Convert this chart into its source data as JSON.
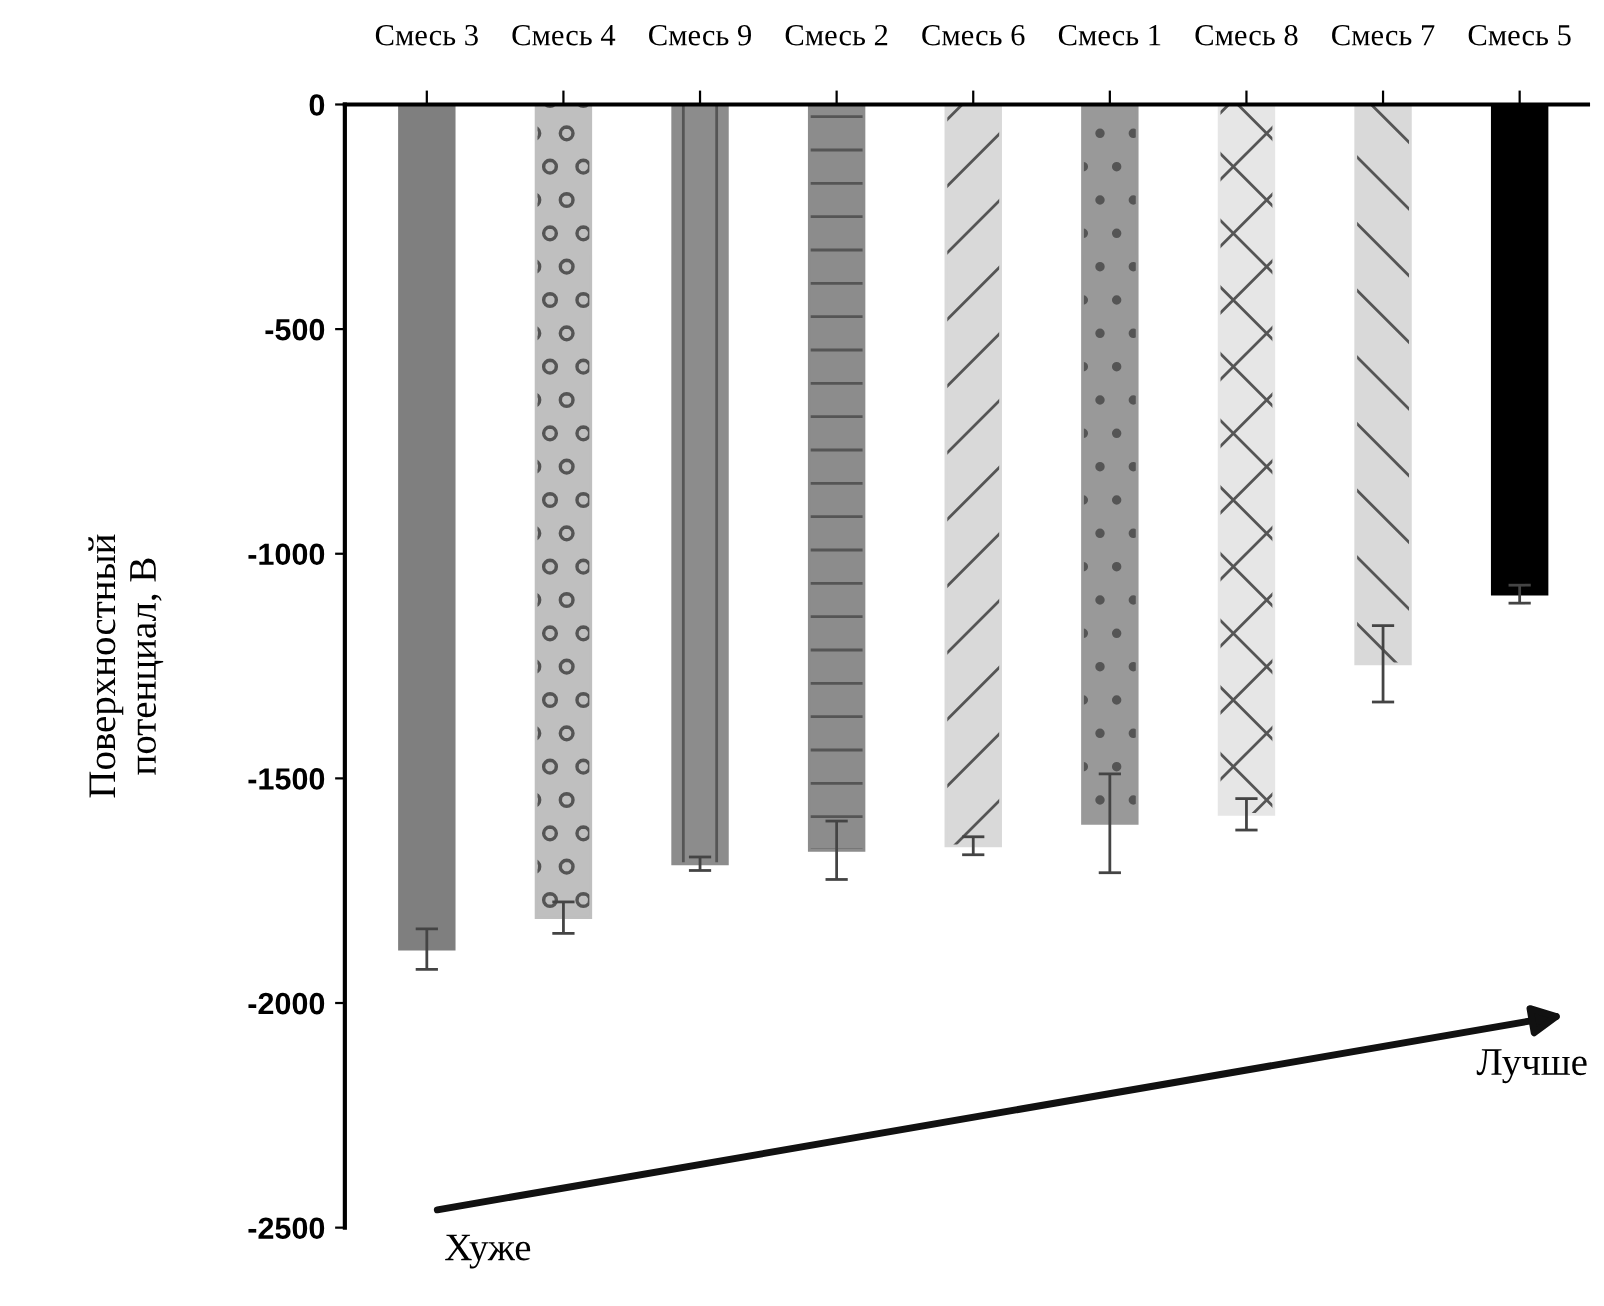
{
  "chart_data": {
    "type": "bar",
    "ylabel": "Поверхностный\nпотенциал, В",
    "categories": [
      "Смесь 3",
      "Смесь 4",
      "Смесь 9",
      "Смесь 2",
      "Смесь 6",
      "Смесь 1",
      "Смесь 8",
      "Смесь 7",
      "Смесь 5"
    ],
    "values": [
      -1880,
      -1810,
      -1690,
      -1660,
      -1650,
      -1600,
      -1580,
      -1245,
      -1090
    ],
    "errors": [
      45,
      35,
      15,
      65,
      20,
      110,
      35,
      85,
      20
    ],
    "colors": [
      "#7f7f7f",
      "#bfbfbf",
      "#8c8c8c",
      "#8c8c8c",
      "#d9d9d9",
      "#999999",
      "#e6e6e6",
      "#d9d9d9",
      "#000000"
    ],
    "ylim": [
      -2500,
      0
    ],
    "yticks": [
      -2500,
      -2000,
      -1500,
      -1000,
      -500,
      0
    ],
    "grid": false,
    "legend": false,
    "annotations": [
      "Хуже",
      "Лучше"
    ]
  }
}
